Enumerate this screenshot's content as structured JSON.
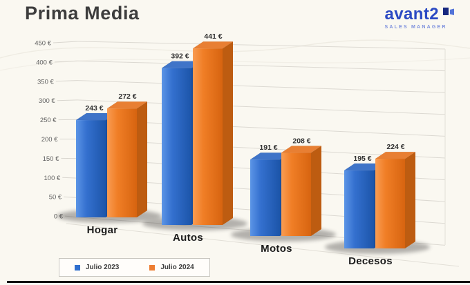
{
  "frame": {
    "background": "#faf8f1",
    "edge_color": "#0e0e0e"
  },
  "header": {
    "title": "Prima Media",
    "brand": {
      "name": "avant2",
      "tagline": "SALES MANAGER",
      "color": "#2b49c3",
      "tagline_color": "#7d90dd"
    }
  },
  "chart_data": {
    "type": "bar",
    "style": "3d-clustered",
    "title": "Prima Media",
    "categories": [
      "Hogar",
      "Autos",
      "Motos",
      "Decesos"
    ],
    "series": [
      {
        "name": "Julio 2023",
        "color": "#2f6fce",
        "values": [
          243,
          392,
          191,
          195
        ]
      },
      {
        "name": "Julio 2024",
        "color": "#ed7d31",
        "values": [
          272,
          441,
          208,
          224
        ]
      }
    ],
    "value_suffix": " €",
    "ylim": [
      0,
      450
    ],
    "ytick_step": 50,
    "yticks": [
      "450 €",
      "400 €",
      "350 €",
      "300 €",
      "250 €",
      "200 €",
      "150 €",
      "100 €",
      "50 €",
      "0 €"
    ],
    "grid": true,
    "data_labels": true,
    "legend_position": "bottom-left"
  }
}
